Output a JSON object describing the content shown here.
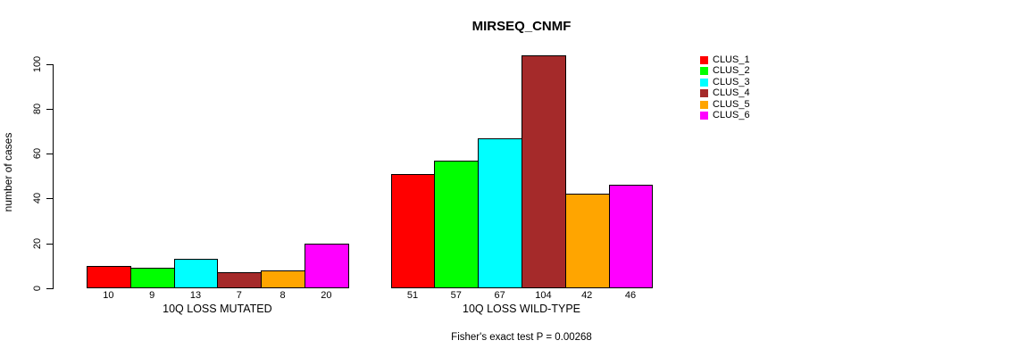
{
  "title": "MIRSEQ_CNMF",
  "chart_data": {
    "type": "bar",
    "title": "MIRSEQ_CNMF",
    "ylabel": "number of cases",
    "xlabel": "",
    "ylim": [
      0,
      100
    ],
    "yticks": [
      0,
      20,
      40,
      60,
      80,
      100
    ],
    "grid": false,
    "legend_position": "right",
    "groups": [
      {
        "label": "10Q LOSS MUTATED",
        "values": [
          10,
          9,
          13,
          7,
          8,
          20
        ]
      },
      {
        "label": "10Q LOSS WILD-TYPE",
        "values": [
          51,
          57,
          67,
          104,
          42,
          46
        ]
      }
    ],
    "series_colors": [
      "#FF0000",
      "#00FF00",
      "#00FFFF",
      "#A52A2A",
      "#FFA500",
      "#FF00FF"
    ],
    "legend": [
      {
        "label": "CLUS_1",
        "color": "#FF0000"
      },
      {
        "label": "CLUS_2",
        "color": "#00FF00"
      },
      {
        "label": "CLUS_3",
        "color": "#00FFFF"
      },
      {
        "label": "CLUS_4",
        "color": "#A52A2A"
      },
      {
        "label": "CLUS_5",
        "color": "#FFA500"
      },
      {
        "label": "CLUS_6",
        "color": "#FF00FF"
      }
    ],
    "bar_border_color": "#000000",
    "annotation": "Fisher's exact test P = 0.00268"
  }
}
